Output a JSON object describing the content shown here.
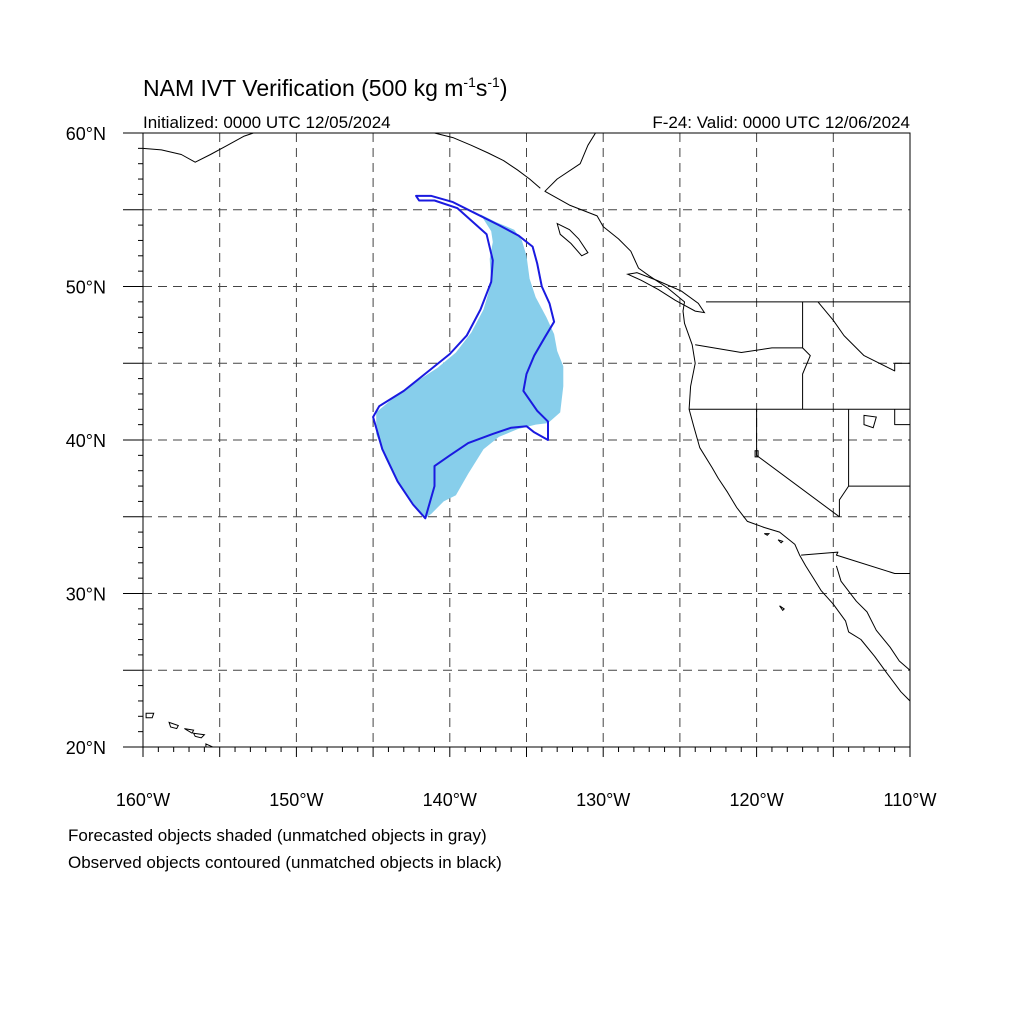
{
  "title": {
    "main": "NAM IVT Verification (500 kg m",
    "exp1": "-1",
    "mid": "s",
    "exp2": "-1",
    "close": ")"
  },
  "init_text": "Initialized: 0000 UTC 12/05/2024",
  "valid_text": "F-24: Valid: 0000 UTC 12/06/2024",
  "captions": [
    "Forecasted objects shaded (unmatched objects in gray)",
    "Observed objects contoured (unmatched objects in black)"
  ],
  "map": {
    "lon_range": [
      -160,
      -110
    ],
    "lat_range": [
      20,
      60
    ],
    "lon_labels": [
      {
        "lon": -160,
        "text": "160°W"
      },
      {
        "lon": -150,
        "text": "150°W"
      },
      {
        "lon": -140,
        "text": "140°W"
      },
      {
        "lon": -130,
        "text": "130°W"
      },
      {
        "lon": -120,
        "text": "120°W"
      },
      {
        "lon": -110,
        "text": "110°W"
      }
    ],
    "lat_labels": [
      {
        "lat": 60,
        "text": "60°N"
      },
      {
        "lat": 50,
        "text": "50°N"
      },
      {
        "lat": 40,
        "text": "40°N"
      },
      {
        "lat": 30,
        "text": "30°N"
      },
      {
        "lat": 20,
        "text": "20°N"
      }
    ],
    "grid_lon": [
      -155,
      -150,
      -145,
      -140,
      -135,
      -130,
      -125,
      -120,
      -115
    ],
    "grid_lat": [
      25,
      30,
      35,
      40,
      45,
      50,
      55
    ],
    "grid_style": "dashed",
    "forecast_color": "#87ceeb",
    "observed_color": "#1a1ae0",
    "coast_color": "#000000",
    "forecast_object": [
      [
        -138.0,
        54.7
      ],
      [
        -137.0,
        54.2
      ],
      [
        -135.8,
        53.7
      ],
      [
        -135.3,
        53.0
      ],
      [
        -135.0,
        52.0
      ],
      [
        -134.8,
        50.5
      ],
      [
        -134.4,
        49.3
      ],
      [
        -133.7,
        48.0
      ],
      [
        -133.2,
        46.9
      ],
      [
        -133.0,
        45.8
      ],
      [
        -132.6,
        44.8
      ],
      [
        -132.6,
        43.5
      ],
      [
        -132.8,
        41.8
      ],
      [
        -133.6,
        41.1
      ],
      [
        -134.4,
        41.0
      ],
      [
        -135.6,
        40.7
      ],
      [
        -136.8,
        40.2
      ],
      [
        -137.8,
        39.4
      ],
      [
        -138.8,
        37.8
      ],
      [
        -139.6,
        36.4
      ],
      [
        -140.4,
        36.0
      ],
      [
        -141.2,
        35.2
      ],
      [
        -141.6,
        34.9
      ],
      [
        -142.6,
        36.0
      ],
      [
        -143.4,
        37.2
      ],
      [
        -144.2,
        38.8
      ],
      [
        -144.8,
        40.4
      ],
      [
        -144.8,
        41.8
      ],
      [
        -143.6,
        42.8
      ],
      [
        -142.2,
        43.8
      ],
      [
        -140.8,
        44.7
      ],
      [
        -139.6,
        45.7
      ],
      [
        -138.6,
        47.0
      ],
      [
        -137.8,
        48.5
      ],
      [
        -137.3,
        50.2
      ],
      [
        -137.4,
        51.8
      ],
      [
        -137.2,
        52.9
      ],
      [
        -137.3,
        53.6
      ]
    ],
    "observed_object": [
      [
        -142.2,
        55.9
      ],
      [
        -141.2,
        55.9
      ],
      [
        -139.8,
        55.5
      ],
      [
        -138.4,
        54.8
      ],
      [
        -136.8,
        54.0
      ],
      [
        -135.5,
        53.3
      ],
      [
        -134.6,
        52.6
      ],
      [
        -134.3,
        51.5
      ],
      [
        -134.0,
        50.0
      ],
      [
        -133.5,
        48.9
      ],
      [
        -133.2,
        47.7
      ],
      [
        -133.8,
        46.7
      ],
      [
        -134.5,
        45.5
      ],
      [
        -135.0,
        44.3
      ],
      [
        -135.2,
        43.2
      ],
      [
        -134.3,
        41.9
      ],
      [
        -133.6,
        41.2
      ],
      [
        -133.6,
        40.0
      ],
      [
        -134.5,
        40.5
      ],
      [
        -135.0,
        40.9
      ],
      [
        -136.0,
        40.8
      ],
      [
        -137.2,
        40.4
      ],
      [
        -138.8,
        39.8
      ],
      [
        -140.0,
        39.0
      ],
      [
        -141.0,
        38.3
      ],
      [
        -141.0,
        37.0
      ],
      [
        -141.6,
        34.9
      ],
      [
        -142.4,
        35.8
      ],
      [
        -143.4,
        37.3
      ],
      [
        -144.4,
        39.4
      ],
      [
        -145.0,
        41.5
      ],
      [
        -144.6,
        42.2
      ],
      [
        -143.0,
        43.2
      ],
      [
        -141.5,
        44.4
      ],
      [
        -140.0,
        45.6
      ],
      [
        -138.9,
        46.8
      ],
      [
        -138.0,
        48.5
      ],
      [
        -137.3,
        50.3
      ],
      [
        -137.2,
        51.7
      ],
      [
        -137.6,
        53.4
      ],
      [
        -139.5,
        55.1
      ],
      [
        -141.0,
        55.6
      ],
      [
        -142.0,
        55.6
      ]
    ],
    "coastline": [
      [
        -130.5,
        60.0
      ],
      [
        -131.0,
        59.2
      ],
      [
        -131.5,
        58.0
      ],
      [
        -133.0,
        57.0
      ],
      [
        -133.8,
        56.2
      ],
      [
        -132.2,
        55.3
      ],
      [
        -130.4,
        54.6
      ],
      [
        -130.0,
        53.9
      ],
      [
        -129.0,
        53.1
      ],
      [
        -128.2,
        52.3
      ],
      [
        -127.7,
        51.2
      ],
      [
        -127.0,
        50.7
      ],
      [
        -125.8,
        49.9
      ],
      [
        -124.7,
        49.0
      ],
      [
        -124.8,
        48.4
      ],
      [
        -124.7,
        47.6
      ],
      [
        -124.2,
        46.2
      ],
      [
        -124.0,
        45.0
      ],
      [
        -124.3,
        43.5
      ],
      [
        -124.4,
        42.0
      ],
      [
        -124.1,
        40.9
      ],
      [
        -123.7,
        39.5
      ],
      [
        -122.9,
        38.2
      ],
      [
        -122.5,
        37.5
      ],
      [
        -121.9,
        36.6
      ],
      [
        -121.3,
        35.6
      ],
      [
        -120.6,
        34.7
      ],
      [
        -119.5,
        34.3
      ],
      [
        -118.5,
        34.0
      ],
      [
        -117.5,
        33.2
      ],
      [
        -117.2,
        32.5
      ],
      [
        -116.8,
        31.8
      ],
      [
        -116.3,
        31.0
      ],
      [
        -115.8,
        30.2
      ],
      [
        -115.0,
        29.3
      ],
      [
        -114.2,
        28.2
      ],
      [
        -114.0,
        27.5
      ],
      [
        -113.2,
        27.0
      ],
      [
        -112.3,
        25.9
      ],
      [
        -111.5,
        24.8
      ],
      [
        -110.6,
        23.6
      ],
      [
        -110.0,
        23.0
      ]
    ],
    "gulf_coast": [
      [
        -114.8,
        31.8
      ],
      [
        -114.5,
        30.8
      ],
      [
        -113.5,
        29.5
      ],
      [
        -112.8,
        28.8
      ],
      [
        -112.2,
        27.6
      ],
      [
        -111.3,
        26.5
      ],
      [
        -110.7,
        25.6
      ],
      [
        -110.0,
        25.0
      ]
    ],
    "vancouver_island": [
      [
        -128.4,
        50.8
      ],
      [
        -127.5,
        50.4
      ],
      [
        -126.4,
        49.8
      ],
      [
        -125.3,
        49.1
      ],
      [
        -124.0,
        48.4
      ],
      [
        -123.4,
        48.3
      ],
      [
        -123.8,
        48.9
      ],
      [
        -124.9,
        49.7
      ],
      [
        -126.5,
        50.4
      ],
      [
        -127.8,
        50.9
      ]
    ],
    "haida_gwaii": [
      [
        -133.0,
        54.1
      ],
      [
        -132.2,
        53.7
      ],
      [
        -131.6,
        53.1
      ],
      [
        -131.0,
        52.2
      ],
      [
        -131.4,
        52.0
      ],
      [
        -132.1,
        52.8
      ],
      [
        -132.8,
        53.4
      ]
    ],
    "alaska_coast": [
      [
        -160.0,
        59.0
      ],
      [
        -158.8,
        58.9
      ],
      [
        -157.5,
        58.6
      ],
      [
        -156.6,
        58.1
      ],
      [
        -155.6,
        58.6
      ],
      [
        -154.5,
        59.2
      ],
      [
        -153.4,
        59.8
      ],
      [
        -152.8,
        60.0
      ]
    ],
    "gulf_alaska_coast": [
      [
        -141.0,
        60.0
      ],
      [
        -139.8,
        59.7
      ],
      [
        -138.6,
        59.2
      ],
      [
        -137.5,
        58.7
      ],
      [
        -136.5,
        58.2
      ],
      [
        -135.6,
        57.6
      ],
      [
        -134.8,
        57.0
      ],
      [
        -134.1,
        56.4
      ]
    ],
    "hawaii_islands": [
      [
        [
          -159.8,
          22.2
        ],
        [
          -159.3,
          22.2
        ],
        [
          -159.4,
          21.9
        ],
        [
          -159.8,
          21.9
        ]
      ],
      [
        [
          -158.3,
          21.6
        ],
        [
          -157.7,
          21.4
        ],
        [
          -157.8,
          21.2
        ],
        [
          -158.2,
          21.3
        ]
      ],
      [
        [
          -157.3,
          21.2
        ],
        [
          -156.7,
          21.1
        ],
        [
          -156.8,
          20.9
        ]
      ],
      [
        [
          -156.7,
          20.9
        ],
        [
          -156.0,
          20.8
        ],
        [
          -156.2,
          20.6
        ],
        [
          -156.6,
          20.7
        ]
      ],
      [
        [
          -155.9,
          20.2
        ],
        [
          -155.0,
          19.8
        ],
        [
          -155.0,
          19.4
        ],
        [
          -155.7,
          19.0
        ],
        [
          -155.9,
          19.6
        ]
      ]
    ],
    "islands_baja": [
      [
        [
          -118.5,
          29.2
        ],
        [
          -118.2,
          29.0
        ],
        [
          -118.3,
          28.9
        ]
      ],
      [
        [
          -119.5,
          33.9
        ],
        [
          -119.2,
          33.9
        ],
        [
          -119.3,
          33.8
        ]
      ],
      [
        [
          -118.6,
          33.5
        ],
        [
          -118.3,
          33.4
        ],
        [
          -118.4,
          33.3
        ]
      ]
    ],
    "borders": [
      [
        [
          -123.3,
          49.0
        ],
        [
          -110.0,
          49.0
        ]
      ],
      [
        [
          -124.4,
          42.0
        ],
        [
          -110.0,
          42.0
        ]
      ],
      [
        [
          -124.0,
          46.2
        ],
        [
          -121.0,
          45.7
        ],
        [
          -119.0,
          46.0
        ],
        [
          -117.0,
          46.0
        ]
      ],
      [
        [
          -117.0,
          49.0
        ],
        [
          -117.0,
          46.0
        ],
        [
          -116.5,
          45.5
        ],
        [
          -117.0,
          44.3
        ],
        [
          -117.0,
          42.0
        ]
      ],
      [
        [
          -120.0,
          42.0
        ],
        [
          -120.0,
          39.0
        ],
        [
          -114.6,
          35.0
        ]
      ],
      [
        [
          -114.0,
          42.0
        ],
        [
          -114.0,
          37.0
        ],
        [
          -114.6,
          36.1
        ],
        [
          -114.6,
          35.0
        ]
      ],
      [
        [
          -116.0,
          49.0
        ],
        [
          -115.0,
          47.8
        ],
        [
          -114.3,
          46.8
        ],
        [
          -113.0,
          45.5
        ],
        [
          -111.0,
          44.5
        ],
        [
          -111.0,
          45.0
        ]
      ],
      [
        [
          -111.0,
          42.0
        ],
        [
          -111.0,
          41.0
        ],
        [
          -110.0,
          41.0
        ]
      ],
      [
        [
          -111.0,
          45.0
        ],
        [
          -110.0,
          45.0
        ]
      ],
      [
        [
          -114.0,
          37.0
        ],
        [
          -110.0,
          37.0
        ]
      ],
      [
        [
          -117.1,
          32.5
        ],
        [
          -114.7,
          32.7
        ],
        [
          -114.8,
          32.5
        ],
        [
          -111.0,
          31.3
        ],
        [
          -110.0,
          31.3
        ]
      ]
    ],
    "lakes": [
      [
        [
          -113.0,
          41.6
        ],
        [
          -112.2,
          41.5
        ],
        [
          -112.4,
          40.8
        ],
        [
          -113.0,
          41.0
        ]
      ],
      [
        [
          -120.1,
          39.3
        ],
        [
          -119.9,
          39.3
        ],
        [
          -119.9,
          38.9
        ],
        [
          -120.1,
          38.9
        ]
      ]
    ]
  }
}
